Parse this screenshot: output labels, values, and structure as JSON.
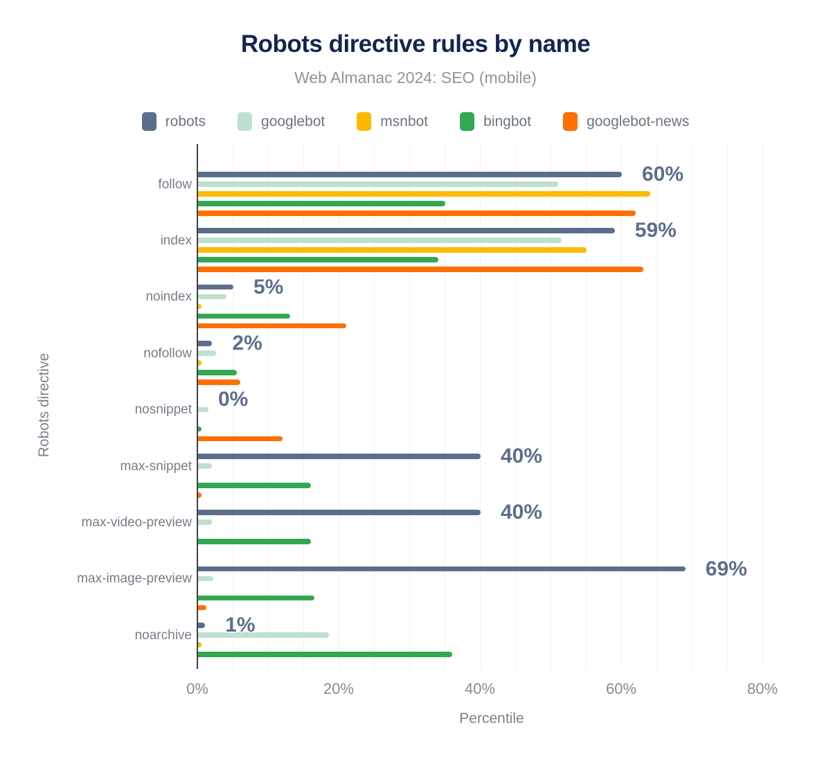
{
  "header": {
    "title": "Robots directive rules by name",
    "subtitle": "Web Almanac 2024: SEO (mobile)"
  },
  "axes": {
    "x_title": "Percentile",
    "y_title": "Robots directive"
  },
  "chart_data": {
    "type": "bar",
    "orientation": "horizontal",
    "title": "Robots directive rules by name",
    "subtitle": "Web Almanac 2024: SEO (mobile)",
    "xlabel": "Percentile",
    "ylabel": "Robots directive",
    "xlim": [
      0,
      83
    ],
    "x_tick_values": [
      0,
      20,
      40,
      60,
      80
    ],
    "x_tick_labels": [
      "0%",
      "20%",
      "40%",
      "60%",
      "80%"
    ],
    "grid_step": 5,
    "grid": true,
    "legend_position": "top",
    "categories": [
      "follow",
      "index",
      "noindex",
      "nofollow",
      "nosnippet",
      "max-snippet",
      "max-video-preview",
      "max-image-preview",
      "noarchive"
    ],
    "series": [
      {
        "name": "robots",
        "color": "#5d6e8c",
        "values": [
          60,
          59,
          5,
          2,
          0,
          40,
          40,
          69,
          1
        ]
      },
      {
        "name": "googlebot",
        "color": "#bfe0cc",
        "values": [
          51,
          51.5,
          4,
          2.5,
          1.5,
          2,
          2,
          2.2,
          18.5
        ]
      },
      {
        "name": "msnbot",
        "color": "#fbba00",
        "values": [
          64,
          55,
          0.5,
          0.5,
          0,
          0,
          0,
          0,
          0.5
        ]
      },
      {
        "name": "bingbot",
        "color": "#33a852",
        "values": [
          35,
          34,
          13,
          5.5,
          0.5,
          16,
          16,
          16.5,
          36
        ]
      },
      {
        "name": "googlebot-news",
        "color": "#fd6f00",
        "values": [
          62,
          63,
          21,
          6,
          12,
          0.3,
          0,
          1.2,
          0
        ]
      }
    ],
    "value_labels": [
      "60%",
      "59%",
      "5%",
      "2%",
      "0%",
      "40%",
      "40%",
      "69%",
      "1%"
    ],
    "value_label_series": "robots"
  }
}
